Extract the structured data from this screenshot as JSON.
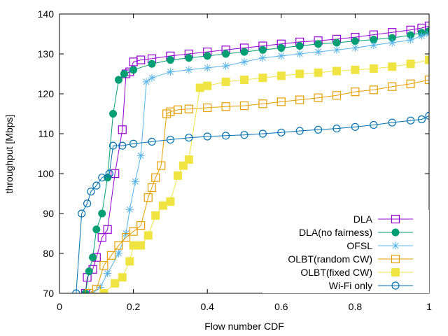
{
  "chart_data": {
    "type": "line",
    "xlabel": "Flow number CDF",
    "ylabel": "throughput [Mbps]",
    "xlim": [
      0,
      1
    ],
    "ylim": [
      70,
      140
    ],
    "xticks": [
      "0",
      "0.2",
      "0.4",
      "0.6",
      "0.8",
      "1"
    ],
    "yticks": [
      "70",
      "80",
      "90",
      "100",
      "110",
      "120",
      "130",
      "140"
    ],
    "grid": false,
    "legend_position": "bottom-right",
    "series": [
      {
        "name": "DLA",
        "color": "#9400d3",
        "marker": "open-square",
        "points": [
          [
            0.07,
            70
          ],
          [
            0.075,
            74
          ],
          [
            0.09,
            76
          ],
          [
            0.1,
            79
          ],
          [
            0.115,
            84
          ],
          [
            0.13,
            86
          ],
          [
            0.15,
            100
          ],
          [
            0.17,
            111
          ],
          [
            0.18,
            125
          ],
          [
            0.19,
            125.5
          ],
          [
            0.2,
            128
          ],
          [
            0.22,
            128.5
          ],
          [
            0.25,
            128.8
          ],
          [
            0.3,
            129.5
          ],
          [
            0.35,
            130
          ],
          [
            0.4,
            130.5
          ],
          [
            0.45,
            131
          ],
          [
            0.5,
            131.5
          ],
          [
            0.55,
            132
          ],
          [
            0.6,
            132.5
          ],
          [
            0.65,
            133
          ],
          [
            0.7,
            133.3
          ],
          [
            0.75,
            133.7
          ],
          [
            0.8,
            134.2
          ],
          [
            0.85,
            134.8
          ],
          [
            0.9,
            135.4
          ],
          [
            0.95,
            136
          ],
          [
            0.98,
            136.5
          ],
          [
            1,
            137
          ]
        ]
      },
      {
        "name": "DLA(no fairness)",
        "color": "#009e73",
        "marker": "filled-circle",
        "points": [
          [
            0.07,
            70
          ],
          [
            0.08,
            75.5
          ],
          [
            0.09,
            79
          ],
          [
            0.1,
            86
          ],
          [
            0.115,
            90
          ],
          [
            0.13,
            99
          ],
          [
            0.145,
            115
          ],
          [
            0.16,
            123.5
          ],
          [
            0.175,
            125
          ],
          [
            0.2,
            126
          ],
          [
            0.25,
            127.5
          ],
          [
            0.3,
            128.5
          ],
          [
            0.35,
            129
          ],
          [
            0.4,
            129.5
          ],
          [
            0.45,
            130
          ],
          [
            0.5,
            130.5
          ],
          [
            0.55,
            131
          ],
          [
            0.6,
            131.5
          ],
          [
            0.65,
            132
          ],
          [
            0.7,
            132.5
          ],
          [
            0.75,
            132.8
          ],
          [
            0.8,
            133.2
          ],
          [
            0.85,
            133.6
          ],
          [
            0.9,
            134
          ],
          [
            0.95,
            134.7
          ],
          [
            0.98,
            135.3
          ],
          [
            1,
            135.7
          ]
        ]
      },
      {
        "name": "OFSL",
        "color": "#56b4e9",
        "marker": "asterisk",
        "points": [
          [
            0.09,
            70
          ],
          [
            0.11,
            71.5
          ],
          [
            0.13,
            75
          ],
          [
            0.16,
            80
          ],
          [
            0.18,
            85
          ],
          [
            0.19,
            91
          ],
          [
            0.205,
            98
          ],
          [
            0.22,
            104.5
          ],
          [
            0.235,
            123
          ],
          [
            0.25,
            124
          ],
          [
            0.3,
            125.5
          ],
          [
            0.35,
            126
          ],
          [
            0.4,
            126.5
          ],
          [
            0.45,
            127
          ],
          [
            0.5,
            128
          ],
          [
            0.55,
            129
          ],
          [
            0.6,
            129.5
          ],
          [
            0.65,
            130
          ],
          [
            0.7,
            130.5
          ],
          [
            0.75,
            131
          ],
          [
            0.8,
            131.5
          ],
          [
            0.85,
            132.2
          ],
          [
            0.9,
            132.8
          ],
          [
            0.95,
            133.5
          ],
          [
            0.98,
            134.5
          ],
          [
            1,
            135
          ]
        ]
      },
      {
        "name": "OLBT(random CW)",
        "color": "#e69f00",
        "marker": "open-square",
        "points": [
          [
            0.08,
            70
          ],
          [
            0.1,
            71
          ],
          [
            0.12,
            77
          ],
          [
            0.14,
            79.5
          ],
          [
            0.16,
            82
          ],
          [
            0.18,
            84
          ],
          [
            0.2,
            85.5
          ],
          [
            0.22,
            87
          ],
          [
            0.24,
            94
          ],
          [
            0.25,
            96.5
          ],
          [
            0.26,
            99
          ],
          [
            0.275,
            102
          ],
          [
            0.29,
            115
          ],
          [
            0.3,
            115.5
          ],
          [
            0.32,
            116
          ],
          [
            0.35,
            116.2
          ],
          [
            0.4,
            116.5
          ],
          [
            0.45,
            116.8
          ],
          [
            0.5,
            117
          ],
          [
            0.55,
            117.5
          ],
          [
            0.6,
            118
          ],
          [
            0.65,
            118.5
          ],
          [
            0.7,
            119
          ],
          [
            0.75,
            119.6
          ],
          [
            0.8,
            120.5
          ],
          [
            0.85,
            121
          ],
          [
            0.9,
            121.8
          ],
          [
            0.95,
            122.5
          ],
          [
            1,
            123.5
          ]
        ]
      },
      {
        "name": "OLBT(fixed CW)",
        "color": "#f0e442",
        "marker": "filled-square",
        "points": [
          [
            0.12,
            70
          ],
          [
            0.15,
            72.5
          ],
          [
            0.17,
            74
          ],
          [
            0.19,
            78
          ],
          [
            0.2,
            82
          ],
          [
            0.22,
            82
          ],
          [
            0.24,
            84.5
          ],
          [
            0.26,
            89.5
          ],
          [
            0.28,
            92
          ],
          [
            0.3,
            93
          ],
          [
            0.32,
            99.5
          ],
          [
            0.335,
            102
          ],
          [
            0.35,
            103.5
          ],
          [
            0.38,
            121.5
          ],
          [
            0.4,
            122
          ],
          [
            0.45,
            123
          ],
          [
            0.5,
            123.5
          ],
          [
            0.55,
            124
          ],
          [
            0.6,
            124.5
          ],
          [
            0.65,
            125
          ],
          [
            0.7,
            125.3
          ],
          [
            0.75,
            125.7
          ],
          [
            0.8,
            126
          ],
          [
            0.85,
            126.3
          ],
          [
            0.9,
            126.8
          ],
          [
            0.95,
            127.5
          ],
          [
            1,
            128.5
          ]
        ]
      },
      {
        "name": "Wi-Fi only",
        "color": "#0072b2",
        "marker": "open-circle",
        "points": [
          [
            0.045,
            70
          ],
          [
            0.06,
            90
          ],
          [
            0.075,
            92.5
          ],
          [
            0.085,
            95.5
          ],
          [
            0.1,
            97
          ],
          [
            0.115,
            99
          ],
          [
            0.135,
            100
          ],
          [
            0.145,
            107
          ],
          [
            0.17,
            107
          ],
          [
            0.2,
            107.5
          ],
          [
            0.25,
            108
          ],
          [
            0.3,
            108.5
          ],
          [
            0.35,
            109
          ],
          [
            0.4,
            109.3
          ],
          [
            0.45,
            109.5
          ],
          [
            0.5,
            109.7
          ],
          [
            0.55,
            110
          ],
          [
            0.6,
            110.3
          ],
          [
            0.65,
            110.7
          ],
          [
            0.7,
            111
          ],
          [
            0.75,
            111.3
          ],
          [
            0.8,
            111.7
          ],
          [
            0.85,
            112.2
          ],
          [
            0.9,
            112.8
          ],
          [
            0.95,
            113.3
          ],
          [
            0.98,
            113.6
          ],
          [
            1,
            114.5
          ]
        ]
      }
    ]
  }
}
